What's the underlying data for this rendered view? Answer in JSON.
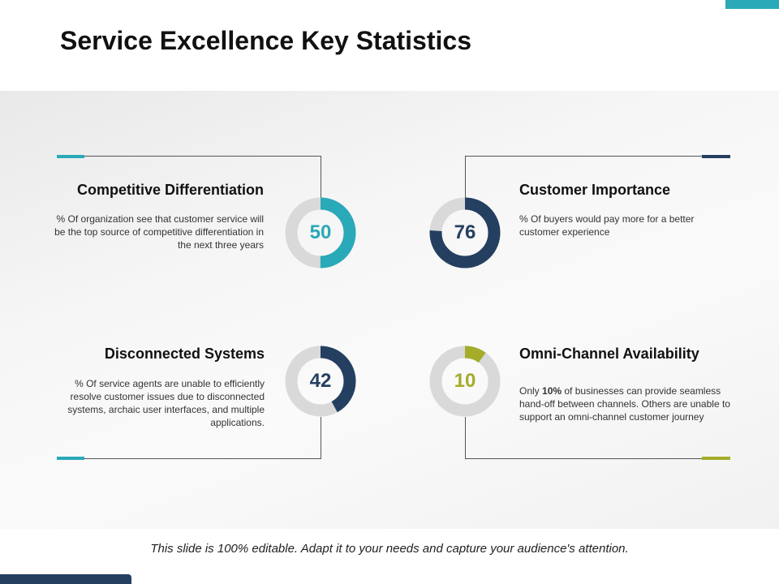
{
  "title": "Service Excellence Key Statistics",
  "colors": {
    "teal": "#2aa9b8",
    "navy": "#243f60",
    "olive": "#a4ac2a",
    "track": "#d9d9d9"
  },
  "stats": [
    {
      "title": "Competitive Differentiation",
      "value": "50",
      "percent": 50,
      "color": "#2aa9b8",
      "desc": "% Of organization  see that customer service  will be the top source of competitive differentiation  in the next three  years"
    },
    {
      "title": "Customer Importance",
      "value": "76",
      "percent": 76,
      "color": "#243f60",
      "desc": "% Of buyers would pay more for a better customer experience"
    },
    {
      "title": "Disconnected Systems",
      "value": "42",
      "percent": 42,
      "color": "#243f60",
      "desc": "% Of service  agents are unable to efficiently resolve customer issues due to disconnected systems, archaic user interfaces, and multiple applications."
    },
    {
      "title": "Omni-Channel Availability",
      "value": "10",
      "percent": 10,
      "color": "#a4ac2a",
      "desc_pre": "Only ",
      "desc_bold": "10%",
      "desc_post": " of businesses can provide  seamless hand-off  between  channels. Others are unable to support an omni-channel  customer journey"
    }
  ],
  "footer": "This slide is 100% editable. Adapt it to your needs and capture your audience's attention."
}
